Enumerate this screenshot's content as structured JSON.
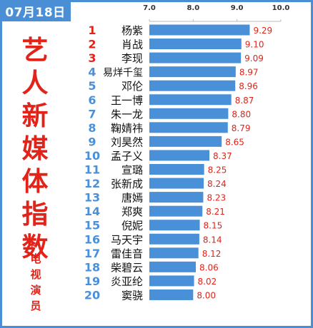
{
  "date_badge": "07月18日",
  "side_title": [
    "艺",
    "人",
    "新",
    "媒",
    "体",
    "指",
    "数"
  ],
  "side_star": "*",
  "side_subtitle": [
    "电",
    "视",
    "演",
    "员"
  ],
  "colors": {
    "bar": "#4a90d9",
    "rank": "#4a90d9",
    "rank_top": "#e2231a",
    "value_label": "#e2231a",
    "name": "#111111",
    "axis_text": "#333333",
    "frame": "#4a8fd6"
  },
  "chart_data": {
    "type": "bar",
    "orientation": "horizontal",
    "xlim": [
      7.0,
      10.0
    ],
    "x_ticks": [
      "7.0",
      "8.0",
      "9.0",
      "10.0"
    ],
    "x_tick_values": [
      7.0,
      8.0,
      9.0,
      10.0
    ],
    "axis_position": "top",
    "ranks": [
      "1",
      "2",
      "3",
      "4",
      "5",
      "6",
      "7",
      "8",
      "9",
      "10",
      "11",
      "12",
      "13",
      "14",
      "15",
      "16",
      "17",
      "18",
      "19",
      "20"
    ],
    "categories": [
      "杨紫",
      "肖战",
      "李现",
      "易烊千玺",
      "邓伦",
      "王一博",
      "朱一龙",
      "鞠婧祎",
      "刘昊然",
      "孟子义",
      "宣璐",
      "张新成",
      "唐嫣",
      "郑爽",
      "倪妮",
      "马天宇",
      "雷佳音",
      "柴碧云",
      "炎亚纶",
      "窦骁"
    ],
    "values": [
      9.29,
      9.1,
      9.09,
      8.97,
      8.96,
      8.87,
      8.8,
      8.79,
      8.65,
      8.37,
      8.25,
      8.24,
      8.23,
      8.21,
      8.15,
      8.14,
      8.12,
      8.06,
      8.02,
      8.0
    ],
    "value_labels": [
      "9.29",
      "9.10",
      "9.09",
      "8.97",
      "8.96",
      "8.87",
      "8.80",
      "8.79",
      "8.65",
      "8.37",
      "8.25",
      "8.24",
      "8.23",
      "8.21",
      "8.15",
      "8.14",
      "8.12",
      "8.06",
      "8.02",
      "8.00"
    ]
  }
}
